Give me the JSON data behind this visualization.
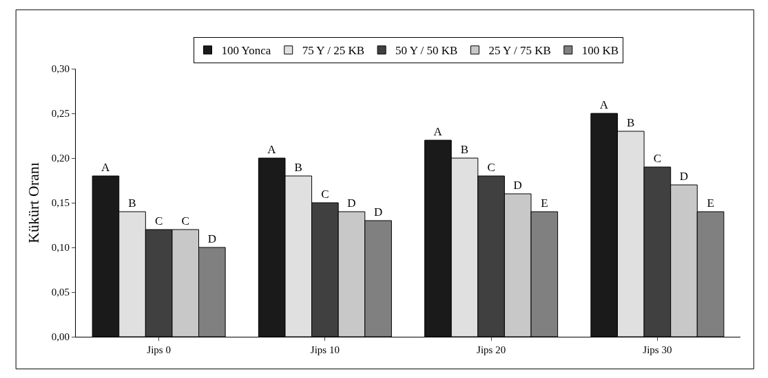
{
  "chart_data": {
    "type": "bar",
    "ylabel": "Kükürt Oranı",
    "categories": [
      "Jips 0",
      "Jips 10",
      "Jips 20",
      "Jips 30"
    ],
    "series": [
      {
        "name": "100 Yonca",
        "color": "#1a1a1a",
        "values": [
          0.18,
          0.2,
          0.22,
          0.25
        ],
        "value_labels": [
          "A",
          "A",
          "A",
          "A"
        ]
      },
      {
        "name": "75 Y / 25 KB",
        "color": "#e0e0e0",
        "values": [
          0.14,
          0.18,
          0.2,
          0.23
        ],
        "value_labels": [
          "B",
          "B",
          "B",
          "B"
        ]
      },
      {
        "name": "50 Y / 50 KB",
        "color": "#404040",
        "values": [
          0.12,
          0.15,
          0.18,
          0.19
        ],
        "value_labels": [
          "C",
          "C",
          "C",
          "C"
        ]
      },
      {
        "name": "25 Y / 75 KB",
        "color": "#c8c8c8",
        "values": [
          0.12,
          0.14,
          0.16,
          0.17
        ],
        "value_labels": [
          "C",
          "D",
          "D",
          "D"
        ]
      },
      {
        "name": "100 KB",
        "color": "#808080",
        "values": [
          0.1,
          0.13,
          0.14,
          0.14
        ],
        "value_labels": [
          "D",
          "D",
          "E",
          "E"
        ]
      }
    ],
    "ylim": [
      0,
      0.3
    ],
    "yticks": [
      {
        "value": 0,
        "label": "0,00"
      },
      {
        "value": 0.05,
        "label": "0,05"
      },
      {
        "value": 0.1,
        "label": "0,10"
      },
      {
        "value": 0.15,
        "label": "0,15"
      },
      {
        "value": 0.2,
        "label": "0,20"
      },
      {
        "value": 0.25,
        "label": "0,25"
      },
      {
        "value": 0.3,
        "label": "0,30"
      }
    ],
    "grid": false,
    "legend": "top"
  }
}
